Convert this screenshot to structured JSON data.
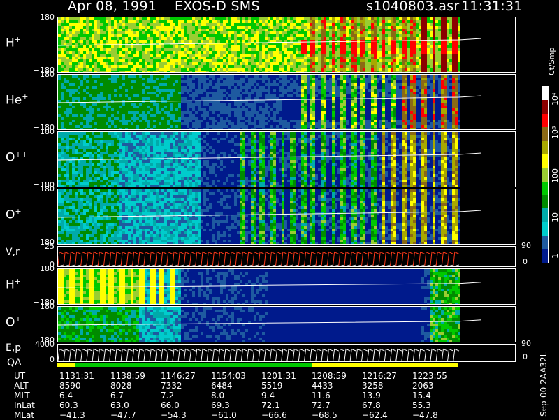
{
  "header": {
    "date": "Apr 08, 1991",
    "instrument": "EXOS-D SMS",
    "file": "s1040803.asr",
    "time": "11:31:31"
  },
  "colorbar": {
    "unit": "Ct/Smp",
    "ticks": [
      "10⁴",
      "10³",
      "100",
      "10",
      "1"
    ],
    "colors": [
      "#ffffff",
      "#8b0000",
      "#ff0000",
      "#8b6914",
      "#a8a800",
      "#ffff00",
      "#9acd32",
      "#00c800",
      "#008b00",
      "#00aaaa",
      "#00cccc",
      "#1e5aa0",
      "#001a8c"
    ]
  },
  "panels": [
    {
      "id": "h-plus-1",
      "label": "H",
      "sup": "+",
      "ymax": "180",
      "ymin": "−180"
    },
    {
      "id": "he-plus",
      "label": "He",
      "sup": "+",
      "ymax": "180",
      "ymin": "−180"
    },
    {
      "id": "o-plusplus",
      "label": "O",
      "sup": "++",
      "ymax": "180",
      "ymin": "−180"
    },
    {
      "id": "o-plus-1",
      "label": "O",
      "sup": "+",
      "ymax": "180",
      "ymin": "−180"
    },
    {
      "id": "vr",
      "label": "V,r",
      "sup": "",
      "ymax": "25",
      "ymin": "0",
      "rmax": "90",
      "rmin": "0"
    },
    {
      "id": "h-plus-2",
      "label": "H",
      "sup": "+",
      "ymax": "180",
      "ymin": "−180"
    },
    {
      "id": "o-plus-2",
      "label": "O",
      "sup": "+",
      "ymax": "180",
      "ymin": "−180"
    },
    {
      "id": "ep",
      "label": "E,p",
      "sup": "",
      "ymax": "4000",
      "ymin": "0",
      "rmax": "90",
      "rmin": "0"
    }
  ],
  "qa_label": "QA",
  "table": {
    "rows": [
      {
        "name": "UT",
        "values": [
          "1131:31",
          "1138:59",
          "1146:27",
          "1154:03",
          "1201:31",
          "1208:59",
          "1216:27",
          "1223:55"
        ]
      },
      {
        "name": "ALT",
        "values": [
          "8590",
          "8028",
          "7332",
          "6484",
          "5519",
          "4433",
          "3258",
          "2063"
        ]
      },
      {
        "name": "MLT",
        "values": [
          "6.4",
          "6.7",
          "7.2",
          "8.0",
          "9.4",
          "11.6",
          "13.9",
          "15.4"
        ]
      },
      {
        "name": "InLat",
        "values": [
          "60.3",
          "63.0",
          "66.0",
          "69.3",
          "72.1",
          "72.7",
          "67.8",
          "55.3"
        ]
      },
      {
        "name": "MLat",
        "values": [
          "−41.3",
          "−47.7",
          "−54.3",
          "−61.0",
          "−66.6",
          "−68.5",
          "−62.4",
          "−47.8"
        ]
      }
    ]
  },
  "footer": "Sep-00 2AA32L"
}
